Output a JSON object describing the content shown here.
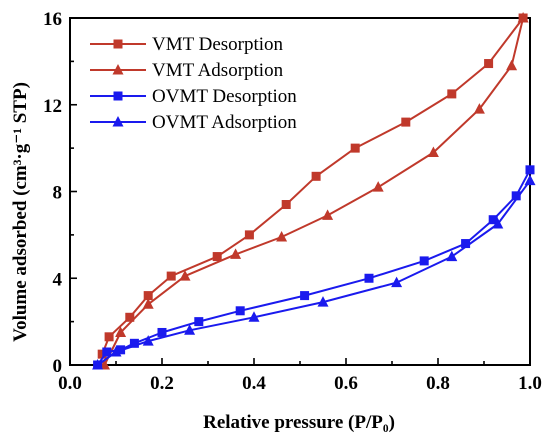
{
  "chart_data": {
    "type": "line",
    "xlabel": "Relative pressure (P/P₀)",
    "ylabel": "Volume adsorbed (cm³·g⁻¹ STP)",
    "xlim": [
      0.0,
      1.0
    ],
    "ylim": [
      0,
      16
    ],
    "xticks": [
      "0.0",
      "0.2",
      "0.4",
      "0.6",
      "0.8",
      "1.0"
    ],
    "yticks": [
      "0",
      "4",
      "8",
      "12",
      "16"
    ],
    "legend_placement": "top-left",
    "grid": false,
    "series": [
      {
        "name": "VMT Desorption",
        "color": "#c0392b",
        "marker": "square",
        "x": [
          0.07,
          0.085,
          0.13,
          0.17,
          0.22,
          0.32,
          0.39,
          0.47,
          0.535,
          0.62,
          0.73,
          0.83,
          0.91,
          0.985
        ],
        "y": [
          0.5,
          1.3,
          2.2,
          3.2,
          4.1,
          5.0,
          6.0,
          7.4,
          8.7,
          10.0,
          11.2,
          12.5,
          13.9,
          16.0
        ]
      },
      {
        "name": "VMT Adsorption",
        "color": "#c0392b",
        "marker": "triangle",
        "x": [
          0.075,
          0.11,
          0.17,
          0.25,
          0.36,
          0.46,
          0.56,
          0.67,
          0.79,
          0.89,
          0.96,
          0.985
        ],
        "y": [
          0.0,
          1.5,
          2.8,
          4.1,
          5.1,
          5.9,
          6.9,
          8.2,
          9.8,
          11.8,
          13.8,
          16.0
        ]
      },
      {
        "name": "OVMT Desorption",
        "color": "#1a1aee",
        "marker": "square",
        "x": [
          0.06,
          0.08,
          0.11,
          0.14,
          0.2,
          0.28,
          0.37,
          0.51,
          0.65,
          0.77,
          0.86,
          0.92,
          0.97,
          1.0
        ],
        "y": [
          0.0,
          0.6,
          0.7,
          1.0,
          1.5,
          2.0,
          2.5,
          3.2,
          4.0,
          4.8,
          5.6,
          6.7,
          7.8,
          9.0
        ]
      },
      {
        "name": "OVMT Adsorption",
        "color": "#1a1aee",
        "marker": "triangle",
        "x": [
          0.06,
          0.1,
          0.17,
          0.26,
          0.4,
          0.55,
          0.71,
          0.83,
          0.93,
          1.0
        ],
        "y": [
          0.0,
          0.6,
          1.1,
          1.6,
          2.2,
          2.9,
          3.8,
          5.0,
          6.5,
          8.5
        ]
      }
    ]
  }
}
